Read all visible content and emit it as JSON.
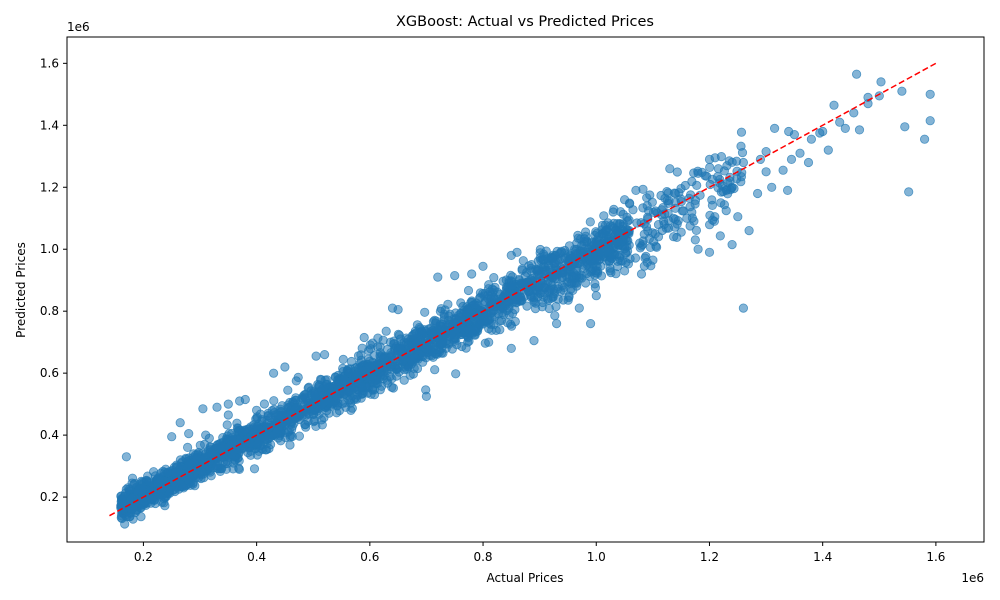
{
  "chart_data": {
    "type": "scatter",
    "title": "XGBoost: Actual vs Predicted Prices",
    "xlabel": "Actual Prices",
    "ylabel": "Predicted Prices",
    "x_offset_text": "1e6",
    "y_offset_text": "1e6",
    "xlim": [
      65000,
      1685000
    ],
    "ylim": [
      55000,
      1685000
    ],
    "x_ticks": [
      0.2,
      0.4,
      0.6,
      0.8,
      1.0,
      1.2,
      1.4,
      1.6
    ],
    "x_tick_labels": [
      "0.2",
      "0.4",
      "0.6",
      "0.8",
      "1.0",
      "1.2",
      "1.4",
      "1.6"
    ],
    "y_ticks": [
      0.2,
      0.4,
      0.6,
      0.8,
      1.0,
      1.2,
      1.4,
      1.6
    ],
    "y_tick_labels": [
      "0.2",
      "0.4",
      "0.6",
      "0.8",
      "1.0",
      "1.2",
      "1.4",
      "1.6"
    ],
    "grid": false,
    "point_color": "#1f77b4",
    "point_alpha": 0.55,
    "reference_line": {
      "style": "dashed",
      "color": "#ff0000",
      "from": [
        140000,
        140000
      ],
      "to": [
        1600000,
        1600000
      ]
    },
    "series_description": "Dense cloud of several thousand points tightly following y = x between 0.16e6 and 1.0e6; sparser between 1.0e6 and 1.6e6.",
    "points": [
      [
        170000,
        330000
      ],
      [
        180000,
        245000
      ],
      [
        165000,
        170000
      ],
      [
        175000,
        225000
      ],
      [
        265000,
        440000
      ],
      [
        250000,
        395000
      ],
      [
        305000,
        485000
      ],
      [
        330000,
        490000
      ],
      [
        350000,
        500000
      ],
      [
        370000,
        510000
      ],
      [
        380000,
        515000
      ],
      [
        430000,
        600000
      ],
      [
        450000,
        620000
      ],
      [
        505000,
        655000
      ],
      [
        520000,
        660000
      ],
      [
        590000,
        715000
      ],
      [
        640000,
        810000
      ],
      [
        650000,
        805000
      ],
      [
        720000,
        910000
      ],
      [
        750000,
        915000
      ],
      [
        780000,
        920000
      ],
      [
        800000,
        945000
      ],
      [
        850000,
        980000
      ],
      [
        860000,
        990000
      ],
      [
        700000,
        525000
      ],
      [
        810000,
        700000
      ],
      [
        850000,
        680000
      ],
      [
        890000,
        705000
      ],
      [
        930000,
        760000
      ],
      [
        990000,
        760000
      ],
      [
        970000,
        810000
      ],
      [
        1000000,
        850000
      ],
      [
        1050000,
        930000
      ],
      [
        1080000,
        920000
      ],
      [
        1100000,
        965000
      ],
      [
        1130000,
        1260000
      ],
      [
        1180000,
        1245000
      ],
      [
        1200000,
        1290000
      ],
      [
        1210000,
        1295000
      ],
      [
        1235000,
        1285000
      ],
      [
        1260000,
        1280000
      ],
      [
        1200000,
        990000
      ],
      [
        1240000,
        1015000
      ],
      [
        1260000,
        810000
      ],
      [
        1290000,
        1290000
      ],
      [
        1300000,
        1315000
      ],
      [
        1315000,
        1390000
      ],
      [
        1340000,
        1380000
      ],
      [
        1350000,
        1370000
      ],
      [
        1345000,
        1290000
      ],
      [
        1330000,
        1255000
      ],
      [
        1338000,
        1190000
      ],
      [
        1360000,
        1310000
      ],
      [
        1380000,
        1355000
      ],
      [
        1400000,
        1380000
      ],
      [
        1420000,
        1465000
      ],
      [
        1430000,
        1410000
      ],
      [
        1440000,
        1390000
      ],
      [
        1455000,
        1440000
      ],
      [
        1460000,
        1565000
      ],
      [
        1465000,
        1385000
      ],
      [
        1480000,
        1490000
      ],
      [
        1480000,
        1470000
      ],
      [
        1500000,
        1495000
      ],
      [
        1503000,
        1540000
      ],
      [
        1540000,
        1510000
      ],
      [
        1545000,
        1395000
      ],
      [
        1552000,
        1185000
      ],
      [
        1580000,
        1355000
      ],
      [
        1590000,
        1500000
      ],
      [
        1590000,
        1415000
      ],
      [
        1410000,
        1320000
      ],
      [
        1395000,
        1375000
      ],
      [
        1375000,
        1280000
      ],
      [
        1300000,
        1250000
      ],
      [
        1310000,
        1200000
      ],
      [
        1285000,
        1180000
      ],
      [
        1270000,
        1060000
      ],
      [
        1250000,
        1105000
      ],
      [
        1230000,
        1190000
      ],
      [
        1220000,
        1150000
      ],
      [
        1180000,
        1000000
      ],
      [
        1175000,
        1030000
      ],
      [
        1160000,
        1100000
      ],
      [
        1150000,
        1055000
      ],
      [
        1140000,
        1180000
      ],
      [
        1120000,
        1080000
      ],
      [
        1110000,
        1040000
      ],
      [
        1090000,
        1140000
      ],
      [
        1070000,
        1190000
      ],
      [
        1050000,
        1160000
      ],
      [
        1030000,
        1120000
      ],
      [
        310000,
        400000
      ],
      [
        280000,
        405000
      ],
      [
        350000,
        465000
      ],
      [
        400000,
        480000
      ],
      [
        455000,
        545000
      ],
      [
        470000,
        575000
      ]
    ],
    "band": {
      "x_min": 160000,
      "x_max": 1060000,
      "count": 2600,
      "slope": 0.985,
      "intercept": 8000,
      "sigma_base": 17000,
      "sigma_rel": 0.045
    },
    "sparse_band": {
      "x_min": 1000000,
      "x_max": 1260000,
      "count": 180,
      "slope": 0.96,
      "intercept": 30000,
      "sigma_base": 25000,
      "sigma_rel": 0.04
    }
  }
}
